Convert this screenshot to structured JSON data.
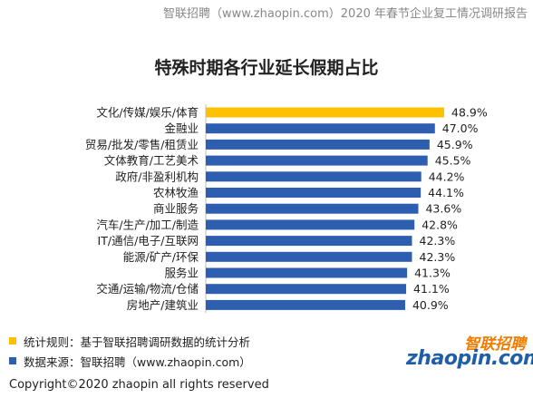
{
  "header_note": "智联招聘（www.zhaopin.com）2020 年春节企业复工情况调研报告",
  "chart_data": {
    "type": "bar",
    "orientation": "horizontal",
    "title": "特殊时期各行业延长假期占比",
    "categories": [
      "文化/传媒/娱乐/体育",
      "金融业",
      "贸易/批发/零售/租赁业",
      "文体教育/工艺美术",
      "政府/非盈利机构",
      "农林牧渔",
      "商业服务",
      "汽车/生产/加工/制造",
      "IT/通信/电子/互联网",
      "能源/矿产/环保",
      "服务业",
      "交通/运输/物流/仓储",
      "房地产/建筑业"
    ],
    "values": [
      48.9,
      47.0,
      45.9,
      45.5,
      44.2,
      44.1,
      43.6,
      42.8,
      42.3,
      42.3,
      41.3,
      41.1,
      40.9
    ],
    "value_labels": [
      "48.9%",
      "47.0%",
      "45.9%",
      "45.5%",
      "44.2%",
      "44.1%",
      "43.6%",
      "42.8%",
      "42.3%",
      "42.3%",
      "41.3%",
      "41.1%",
      "40.9%"
    ],
    "highlight_index": 0,
    "highlight_color": "#ffc000",
    "bar_color": "#2e5eb0",
    "grid": false
  },
  "legend": [
    {
      "color": "#ffc000",
      "text": "统计规则：基于智联招聘调研数据的统计分析"
    },
    {
      "color": "#2e5eb0",
      "text": "数据来源：智联招聘（www.zhaopin.com）"
    }
  ],
  "logo": {
    "cn": "智联招聘",
    "en": "zhaopin.com"
  },
  "copyright": "Copyright©2020 zhaopin all rights reserved"
}
